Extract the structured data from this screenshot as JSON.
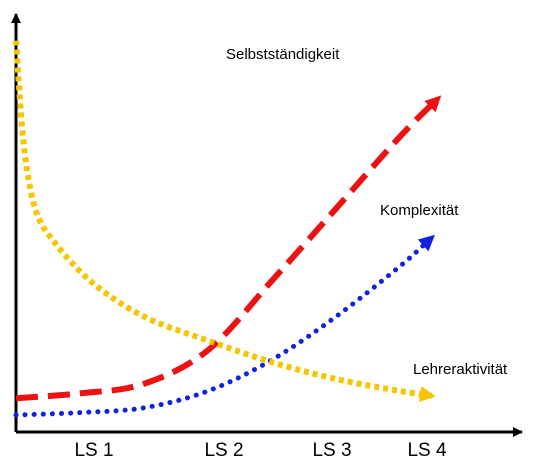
{
  "chart_data": {
    "type": "line",
    "title": "",
    "xlabel": "",
    "ylabel": "",
    "categories": [
      "LS 1",
      "LS 2",
      "LS 3",
      "LS 4"
    ],
    "grid": false,
    "legend": "inline labels at line ends",
    "series": [
      {
        "name": "Selbstständigkeit",
        "color": "#ee1111",
        "style": "dashed",
        "x": [
          0,
          0.5,
          1.0,
          1.5,
          2.0,
          2.5,
          3.0,
          3.3
        ],
        "y": [
          0.07,
          0.09,
          0.13,
          0.27,
          0.56,
          0.86,
          1.16,
          1.32
        ]
      },
      {
        "name": "Komplexität",
        "color": "#1122dd",
        "style": "dotted",
        "x": [
          0,
          0.5,
          1.0,
          1.5,
          2.0,
          2.5,
          3.0,
          3.25
        ],
        "y": [
          0.0,
          0.01,
          0.03,
          0.1,
          0.23,
          0.41,
          0.62,
          0.74
        ]
      },
      {
        "name": "Lehreraktivität",
        "color": "#f5c600",
        "style": "dotted",
        "x": [
          0,
          0.06,
          0.15,
          0.3,
          0.6,
          1.0,
          1.5,
          2.0,
          2.5,
          3.0,
          3.25
        ],
        "y": [
          1.56,
          1.13,
          0.86,
          0.72,
          0.55,
          0.41,
          0.31,
          0.22,
          0.15,
          0.1,
          0.08
        ]
      }
    ]
  }
}
